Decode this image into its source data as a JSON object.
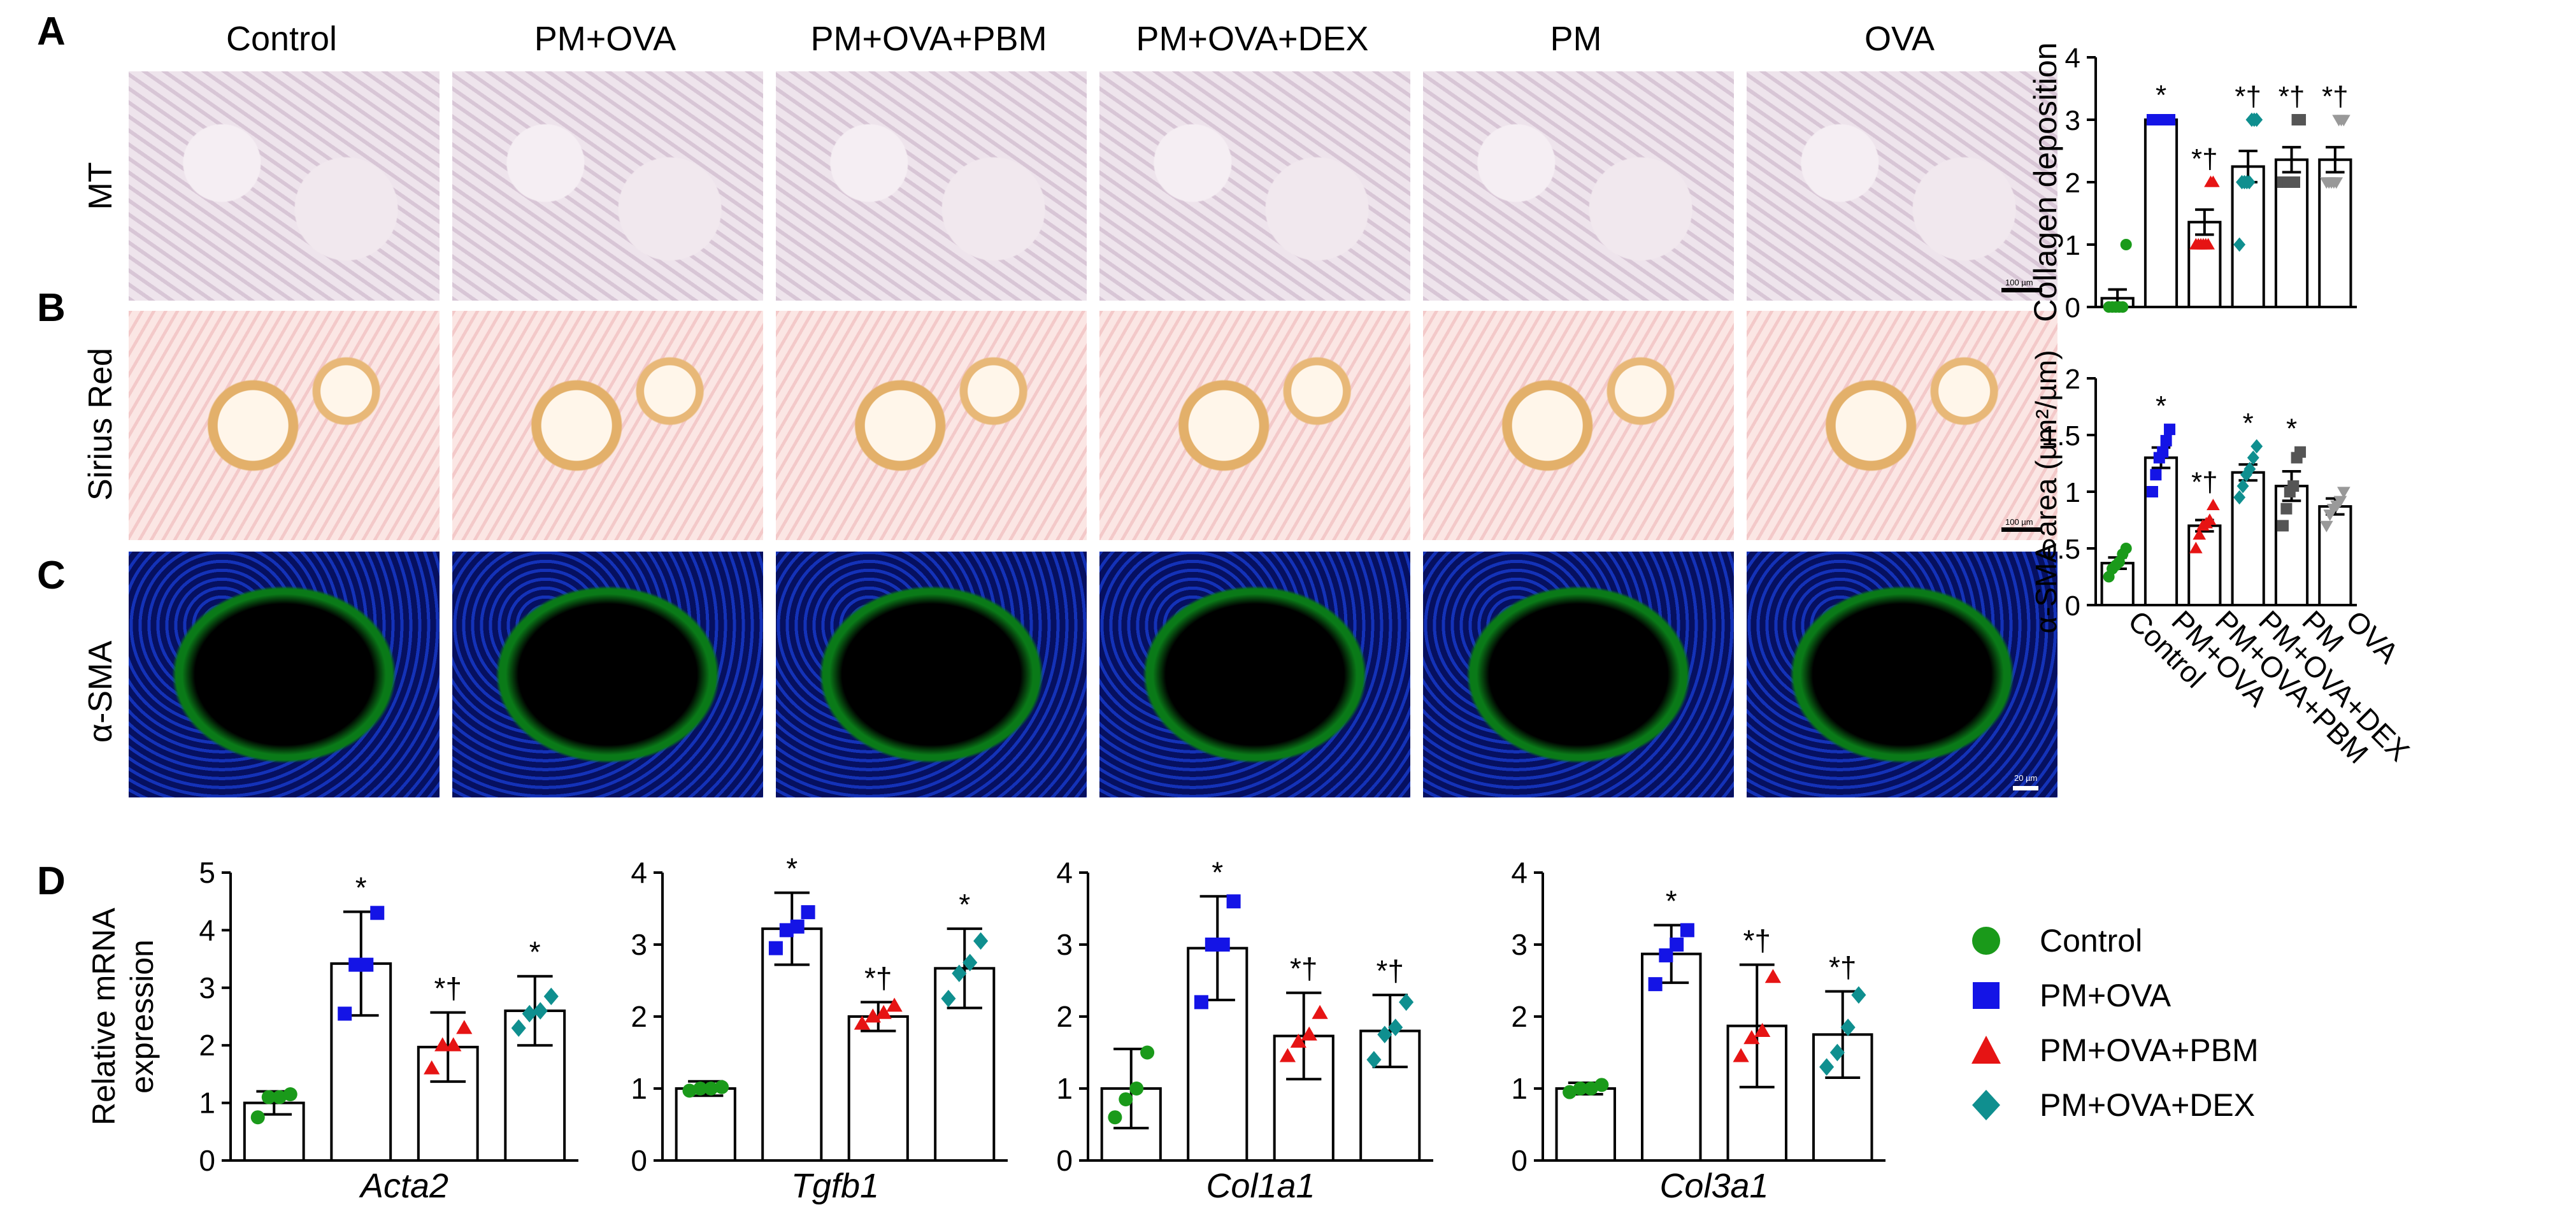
{
  "panels": {
    "A": "A",
    "B": "B",
    "C": "C",
    "D": "D"
  },
  "groups": [
    "Control",
    "PM+OVA",
    "PM+OVA+PBM",
    "PM+OVA+DEX",
    "PM",
    "OVA"
  ],
  "rows": {
    "mt": "MT",
    "sirius": "Sirius Red",
    "sma": "α-SMA"
  },
  "scale": {
    "mt": "100 µm",
    "sirius": "100 µm",
    "sma": "20 µm"
  },
  "colors": {
    "Control": "#1a9a1a",
    "PM+OVA": "#1414e6",
    "PM+OVA+PBM": "#e61414",
    "PM+OVA+DEX": "#0f8f8f",
    "PM": "#555555",
    "OVA": "#999999"
  },
  "chart_data": [
    {
      "type": "bar",
      "id": "collagen",
      "ylabel": "Collagen deposition",
      "ylim": [
        0,
        4
      ],
      "yticks": [
        "0",
        "1",
        "2",
        "3",
        "4"
      ],
      "categories": [
        "Control",
        "PM+OVA",
        "PM+OVA+PBM",
        "PM+OVA+DEX",
        "PM",
        "OVA"
      ],
      "values": [
        0.14,
        3.0,
        1.36,
        2.25,
        2.36,
        2.36
      ],
      "errors": [
        0.14,
        0.02,
        0.2,
        0.25,
        0.2,
        0.2
      ],
      "points": [
        [
          0,
          0,
          0,
          0,
          0,
          1
        ],
        [
          3,
          3,
          3,
          3,
          3,
          3
        ],
        [
          1,
          1,
          1,
          1,
          1,
          1,
          2,
          2
        ],
        [
          1,
          2,
          2,
          2,
          2,
          3,
          3,
          3
        ],
        [
          2,
          2,
          2,
          2,
          2,
          3,
          3
        ],
        [
          2,
          2,
          2,
          2,
          2,
          3,
          3,
          3
        ]
      ],
      "annotations": [
        "",
        "*",
        "*†",
        "*†",
        "*†",
        "*†"
      ]
    },
    {
      "type": "bar",
      "id": "sma",
      "ylabel": "α-SMA area (µm²/µm)",
      "ylim": [
        0,
        2
      ],
      "yticks": [
        "0",
        "0.5",
        "1",
        "1.5",
        "2"
      ],
      "categories": [
        "Control",
        "PM+OVA",
        "PM+OVA+PBM",
        "PM+OVA+DEX",
        "PM",
        "OVA"
      ],
      "values": [
        0.37,
        1.3,
        0.7,
        1.17,
        1.05,
        0.87
      ],
      "errors": [
        0.05,
        0.09,
        0.05,
        0.07,
        0.13,
        0.07
      ],
      "points": [
        [
          0.25,
          0.32,
          0.35,
          0.38,
          0.45,
          0.5
        ],
        [
          1.0,
          1.15,
          1.3,
          1.35,
          1.45,
          1.55
        ],
        [
          0.5,
          0.62,
          0.7,
          0.72,
          0.75,
          0.88
        ],
        [
          0.95,
          1.05,
          1.15,
          1.2,
          1.3,
          1.4
        ],
        [
          0.7,
          0.85,
          1.0,
          1.05,
          1.3,
          1.35
        ],
        [
          0.7,
          0.8,
          0.85,
          0.88,
          0.92,
          1.0
        ]
      ],
      "annotations": [
        "",
        "*",
        "*†",
        "*",
        "*",
        ""
      ]
    },
    {
      "type": "bar",
      "id": "acta2",
      "xlabel": "Acta2",
      "ylabel": "Relative mRNA expression",
      "ylim": [
        0,
        5
      ],
      "yticks": [
        "0",
        "1",
        "2",
        "3",
        "4",
        "5"
      ],
      "categories": [
        "Control",
        "PM+OVA",
        "PM+OVA+PBM",
        "PM+OVA+DEX"
      ],
      "values": [
        1.0,
        3.42,
        1.97,
        2.6
      ],
      "errors": [
        0.2,
        0.9,
        0.6,
        0.6
      ],
      "points": [
        [
          0.75,
          1.1,
          1.1,
          1.15
        ],
        [
          2.55,
          3.4,
          3.4,
          4.3
        ],
        [
          1.6,
          2.0,
          2.0,
          2.3
        ],
        [
          2.3,
          2.55,
          2.6,
          2.85
        ]
      ],
      "annotations": [
        "",
        "*",
        "*†",
        "*"
      ]
    },
    {
      "type": "bar",
      "id": "tgfb1",
      "xlabel": "Tgfb1",
      "ylim": [
        0,
        4
      ],
      "yticks": [
        "0",
        "1",
        "2",
        "3",
        "4"
      ],
      "categories": [
        "Control",
        "PM+OVA",
        "PM+OVA+PBM",
        "PM+OVA+DEX"
      ],
      "values": [
        1.0,
        3.22,
        2.0,
        2.67
      ],
      "errors": [
        0.1,
        0.5,
        0.2,
        0.55
      ],
      "points": [
        [
          0.97,
          1.0,
          1.0,
          1.02
        ],
        [
          2.95,
          3.2,
          3.25,
          3.45
        ],
        [
          1.9,
          2.0,
          2.05,
          2.15
        ],
        [
          2.25,
          2.6,
          2.75,
          3.05
        ]
      ],
      "annotations": [
        "",
        "*",
        "*†",
        "*"
      ]
    },
    {
      "type": "bar",
      "id": "col1a1",
      "xlabel": "Col1a1",
      "ylim": [
        0,
        4
      ],
      "yticks": [
        "0",
        "1",
        "2",
        "3",
        "4"
      ],
      "categories": [
        "Control",
        "PM+OVA",
        "PM+OVA+PBM",
        "PM+OVA+DEX"
      ],
      "values": [
        1.0,
        2.95,
        1.73,
        1.8
      ],
      "errors": [
        0.55,
        0.72,
        0.6,
        0.5
      ],
      "points": [
        [
          0.6,
          0.85,
          1.0,
          1.5
        ],
        [
          2.2,
          3.0,
          3.0,
          3.6
        ],
        [
          1.45,
          1.65,
          1.75,
          2.05
        ],
        [
          1.4,
          1.75,
          1.85,
          2.2
        ]
      ],
      "annotations": [
        "",
        "*",
        "*†",
        "*†"
      ]
    },
    {
      "type": "bar",
      "id": "col3a1",
      "xlabel": "Col3a1",
      "ylim": [
        0,
        4
      ],
      "yticks": [
        "0",
        "1",
        "2",
        "3",
        "4"
      ],
      "categories": [
        "Control",
        "PM+OVA",
        "PM+OVA+PBM",
        "PM+OVA+DEX"
      ],
      "values": [
        1.0,
        2.87,
        1.87,
        1.75
      ],
      "errors": [
        0.08,
        0.4,
        0.85,
        0.6
      ],
      "points": [
        [
          0.95,
          1.0,
          1.0,
          1.05
        ],
        [
          2.45,
          2.85,
          3.0,
          3.2
        ],
        [
          1.45,
          1.7,
          1.8,
          2.55
        ],
        [
          1.3,
          1.5,
          1.85,
          2.3
        ]
      ],
      "annotations": [
        "",
        "*",
        "*†",
        "*†"
      ]
    }
  ],
  "legend": [
    {
      "label": "Control",
      "shape": "circle",
      "color": "#1a9a1a"
    },
    {
      "label": "PM+OVA",
      "shape": "square",
      "color": "#1414e6"
    },
    {
      "label": "PM+OVA+PBM",
      "shape": "triangle",
      "color": "#e61414"
    },
    {
      "label": "PM+OVA+DEX",
      "shape": "diamond",
      "color": "#0f8f8f"
    }
  ]
}
